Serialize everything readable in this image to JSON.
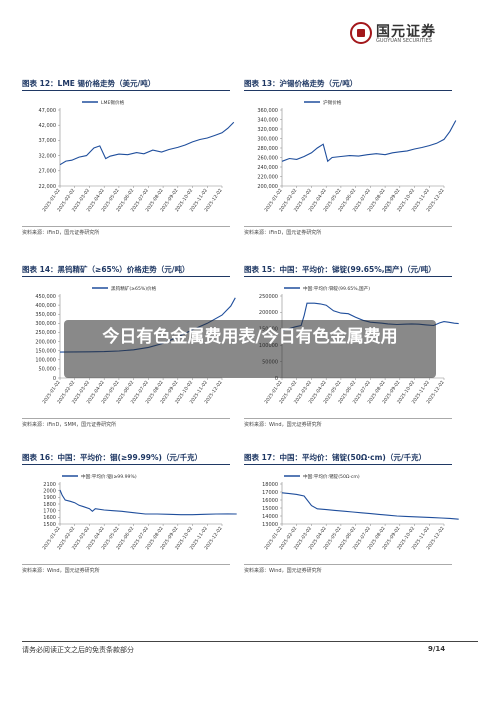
{
  "header": {
    "logo_cn": "国元证券",
    "logo_en": "GUOYUAN SECURITIES"
  },
  "overlay": {
    "text": "今日有色金属费用表/今日有色金属费用"
  },
  "footer": {
    "disclaimer": "请务必阅读正文之后的免责条款部分",
    "page": "9/14"
  },
  "panels": [
    {
      "title": "图表 12：LME 锡价格走势（美元/吨）",
      "source": "资料来源：iFinD，国元证券研究所"
    },
    {
      "title": "图表 13：沪锡价格走势（元/吨）",
      "source": "资料来源：iFinD，国元证券研究所"
    },
    {
      "title": "图表 14：黑钨精矿（≥65%）价格走势（元/吨）",
      "source": "资料来源：iFinD，SMM，国元证券研究所"
    },
    {
      "title": "图表 15：中国：平均价：锑锭(99.65%,国产)（元/吨）",
      "source": "资料来源：Wind，国元证券研究所"
    },
    {
      "title": "图表 16：中国：平均价：铟(≥99.99%)（元/千克）",
      "source": "资料来源：Wind，国元证券研究所"
    },
    {
      "title": "图表 17：中国：平均价：锗锭(50Ω·cm)（元/千克）",
      "source": "资料来源：Wind，国元证券研究所"
    }
  ],
  "chart_data": [
    {
      "type": "line",
      "legend": "LME锡价格",
      "yticks": [
        "22,000",
        "27,000",
        "32,000",
        "37,000",
        "42,000",
        "47,000"
      ],
      "ylim": [
        22000,
        47000
      ],
      "x": [
        "2025-01-02",
        "2025-02-02",
        "2025-03-02",
        "2025-04-02",
        "2025-05-02",
        "2025-06-02",
        "2025-07-02",
        "2025-08-02",
        "2025-09-02",
        "2025-10-02",
        "2025-11-02",
        "2025-12-02"
      ],
      "series": [
        {
          "name": "LME锡价格",
          "color": "#1f4e9c",
          "points": [
            [
              0,
              29000
            ],
            [
              0.4,
              30200
            ],
            [
              0.8,
              30500
            ],
            [
              1.3,
              31500
            ],
            [
              1.8,
              32000
            ],
            [
              2.3,
              34500
            ],
            [
              2.7,
              35200
            ],
            [
              3.1,
              31000
            ],
            [
              3.4,
              31800
            ],
            [
              4.0,
              32500
            ],
            [
              4.6,
              32300
            ],
            [
              5.2,
              33000
            ],
            [
              5.7,
              32600
            ],
            [
              6.3,
              33800
            ],
            [
              6.9,
              33200
            ],
            [
              7.4,
              34000
            ],
            [
              8.0,
              34700
            ],
            [
              8.5,
              35500
            ],
            [
              9.0,
              36500
            ],
            [
              9.5,
              37300
            ],
            [
              10.0,
              37800
            ],
            [
              10.5,
              38600
            ],
            [
              11.0,
              39500
            ],
            [
              11.4,
              41000
            ],
            [
              11.8,
              43000
            ]
          ]
        }
      ]
    },
    {
      "type": "line",
      "legend": "沪锡价格",
      "yticks": [
        "200,000",
        "220,000",
        "240,000",
        "260,000",
        "280,000",
        "300,000",
        "320,000",
        "340,000",
        "360,000"
      ],
      "ylim": [
        200000,
        360000
      ],
      "x": [
        "2025-01-02",
        "2025-02-02",
        "2025-03-02",
        "2025-04-02",
        "2025-05-02",
        "2025-06-02",
        "2025-07-02",
        "2025-08-02",
        "2025-09-02",
        "2025-10-02",
        "2025-11-02",
        "2025-12-02"
      ],
      "series": [
        {
          "name": "沪锡价格",
          "color": "#1f4e9c",
          "points": [
            [
              0,
              252000
            ],
            [
              0.5,
              258000
            ],
            [
              1.0,
              256000
            ],
            [
              1.5,
              262000
            ],
            [
              2.0,
              270000
            ],
            [
              2.4,
              280000
            ],
            [
              2.8,
              288000
            ],
            [
              3.1,
              252000
            ],
            [
              3.4,
              260000
            ],
            [
              4.0,
              262000
            ],
            [
              4.6,
              264000
            ],
            [
              5.2,
              263000
            ],
            [
              5.8,
              266000
            ],
            [
              6.4,
              268000
            ],
            [
              7.0,
              266000
            ],
            [
              7.5,
              270000
            ],
            [
              8.0,
              272000
            ],
            [
              8.5,
              274000
            ],
            [
              9.0,
              278000
            ],
            [
              9.5,
              281000
            ],
            [
              10.0,
              285000
            ],
            [
              10.5,
              290000
            ],
            [
              11.0,
              298000
            ],
            [
              11.4,
              315000
            ],
            [
              11.8,
              338000
            ]
          ]
        }
      ]
    },
    {
      "type": "line",
      "legend": "黑钨精矿(≥65%)价格",
      "yticks": [
        "0",
        "50,000",
        "100,000",
        "150,000",
        "200,000",
        "250,000",
        "300,000",
        "350,000",
        "400,000",
        "450,000"
      ],
      "ylim": [
        0,
        450000
      ],
      "x": [
        "2025-01-02",
        "2025-02-02",
        "2025-03-02",
        "2025-04-02",
        "2025-05-02",
        "2025-06-02",
        "2025-07-02",
        "2025-08-02",
        "2025-09-02",
        "2025-10-02",
        "2025-11-02",
        "2025-12-02"
      ],
      "series": [
        {
          "name": "黑钨精矿(≥65%)价格",
          "color": "#1f4e9c",
          "points": [
            [
              0,
              142000
            ],
            [
              1,
              143000
            ],
            [
              2,
              144000
            ],
            [
              3,
              145000
            ],
            [
              4,
              148000
            ],
            [
              5,
              155000
            ],
            [
              6,
              168000
            ],
            [
              7,
              190000
            ],
            [
              8,
              225000
            ],
            [
              9,
              265000
            ],
            [
              10,
              300000
            ],
            [
              11,
              345000
            ],
            [
              11.6,
              395000
            ],
            [
              11.9,
              440000
            ]
          ]
        }
      ]
    },
    {
      "type": "line",
      "legend": "中国:平均价:锑锭(99.65%,国产)",
      "yticks": [
        "0",
        "50000",
        "100000",
        "150000",
        "200000",
        "250000"
      ],
      "ylim": [
        0,
        250000
      ],
      "x": [
        "2025-01-02",
        "2025-02-02",
        "2025-03-02",
        "2025-04-02",
        "2025-05-02",
        "2025-06-02",
        "2025-07-02",
        "2025-08-02",
        "2025-09-02",
        "2025-10-02",
        "2025-11-02",
        "2025-12-02"
      ],
      "series": [
        {
          "name": "中国:平均价:锑锭(99.65%,国产)",
          "color": "#1f4e9c",
          "points": [
            [
              0,
              144000
            ],
            [
              0.3,
              148000
            ],
            [
              0.6,
              152000
            ],
            [
              0.9,
              156000
            ],
            [
              1.3,
              160000
            ],
            [
              1.5,
              190000
            ],
            [
              1.7,
              228000
            ],
            [
              2.2,
              228000
            ],
            [
              2.6,
              226000
            ],
            [
              3.0,
              222000
            ],
            [
              3.5,
              205000
            ],
            [
              4.0,
              198000
            ],
            [
              4.5,
              196000
            ],
            [
              5.0,
              185000
            ],
            [
              5.5,
              176000
            ],
            [
              6.0,
              170000
            ],
            [
              6.6,
              168000
            ],
            [
              7.2,
              165000
            ],
            [
              7.8,
              163000
            ],
            [
              8.3,
              164000
            ],
            [
              8.8,
              165000
            ],
            [
              9.3,
              164000
            ],
            [
              9.8,
              162000
            ],
            [
              10.3,
              160000
            ],
            [
              10.7,
              168000
            ],
            [
              11.0,
              172000
            ],
            [
              11.3,
              170000
            ],
            [
              11.7,
              167000
            ],
            [
              12.0,
              166000
            ]
          ]
        }
      ]
    },
    {
      "type": "line",
      "legend": "中国:平均价:铟(≥99.99%)",
      "yticks": [
        "1500",
        "1600",
        "1700",
        "1800",
        "1900",
        "2000",
        "2100"
      ],
      "ylim": [
        1500,
        2100
      ],
      "x": [
        "2025-01-02",
        "2025-02-02",
        "2025-03-02",
        "2025-04-02",
        "2025-05-02",
        "2025-06-02",
        "2025-07-02",
        "2025-08-02",
        "2025-09-02",
        "2025-10-02",
        "2025-11-02",
        "2025-12-02"
      ],
      "series": [
        {
          "name": "中国:平均价:铟(≥99.99%)",
          "color": "#1f4e9c",
          "points": [
            [
              0,
              2010
            ],
            [
              0.15,
              1930
            ],
            [
              0.35,
              1860
            ],
            [
              0.7,
              1840
            ],
            [
              1.0,
              1820
            ],
            [
              1.3,
              1780
            ],
            [
              1.6,
              1760
            ],
            [
              2.0,
              1730
            ],
            [
              2.2,
              1690
            ],
            [
              2.4,
              1730
            ],
            [
              3.0,
              1710
            ],
            [
              3.6,
              1700
            ],
            [
              4.2,
              1690
            ],
            [
              5.0,
              1670
            ],
            [
              5.8,
              1650
            ],
            [
              6.6,
              1650
            ],
            [
              7.4,
              1645
            ],
            [
              8.2,
              1640
            ],
            [
              9.0,
              1640
            ],
            [
              9.8,
              1645
            ],
            [
              10.6,
              1650
            ],
            [
              11.4,
              1652
            ],
            [
              12.0,
              1650
            ]
          ]
        }
      ]
    },
    {
      "type": "line",
      "legend": "中国:平均价:锗锭(50Ω·cm)",
      "yticks": [
        "13000",
        "14000",
        "15000",
        "16000",
        "17000",
        "18000"
      ],
      "ylim": [
        13000,
        18000
      ],
      "x": [
        "2025-01-02",
        "2025-02-02",
        "2025-03-02",
        "2025-04-02",
        "2025-05-02",
        "2025-06-02",
        "2025-07-02",
        "2025-08-02",
        "2025-09-02",
        "2025-10-02",
        "2025-11-02",
        "2025-12-02"
      ],
      "series": [
        {
          "name": "中国:平均价:锗锭(50Ω·cm)",
          "color": "#1f4e9c",
          "points": [
            [
              0,
              16900
            ],
            [
              0.5,
              16800
            ],
            [
              1.0,
              16700
            ],
            [
              1.5,
              16500
            ],
            [
              2.0,
              15300
            ],
            [
              2.4,
              14900
            ],
            [
              3.0,
              14800
            ],
            [
              3.6,
              14700
            ],
            [
              4.2,
              14600
            ],
            [
              4.8,
              14500
            ],
            [
              5.4,
              14400
            ],
            [
              6.0,
              14300
            ],
            [
              6.6,
              14200
            ],
            [
              7.2,
              14100
            ],
            [
              7.8,
              14000
            ],
            [
              8.4,
              13950
            ],
            [
              9.0,
              13900
            ],
            [
              9.6,
              13850
            ],
            [
              10.2,
              13800
            ],
            [
              10.8,
              13750
            ],
            [
              11.4,
              13700
            ],
            [
              12.0,
              13600
            ]
          ]
        }
      ]
    }
  ]
}
